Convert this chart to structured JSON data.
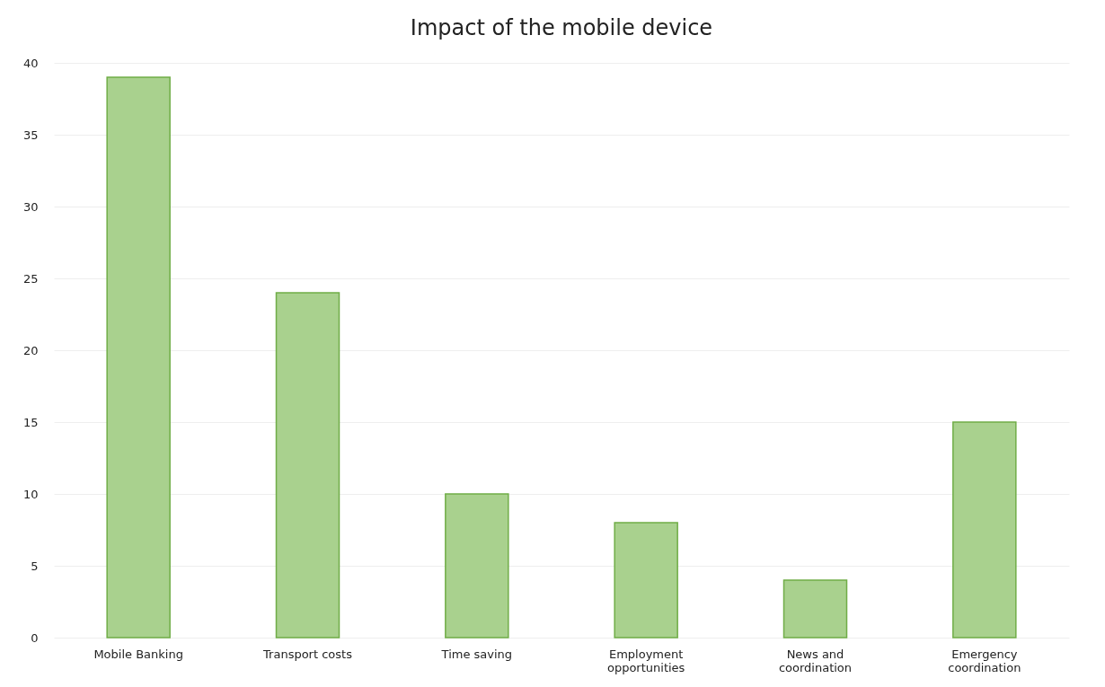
{
  "chart_data": {
    "type": "bar",
    "title": "Impact of the mobile device",
    "categories": [
      "Mobile Banking",
      "Transport costs",
      "Time saving",
      "Employment opportunities",
      "News and coordination",
      "Emergency coordination"
    ],
    "values": [
      39,
      24,
      10,
      8,
      4,
      15
    ],
    "color": "#a9d18e",
    "ylim": [
      0,
      40
    ],
    "yticks": [
      0,
      5,
      10,
      15,
      20,
      25,
      30,
      35,
      40
    ],
    "grid": "y"
  }
}
